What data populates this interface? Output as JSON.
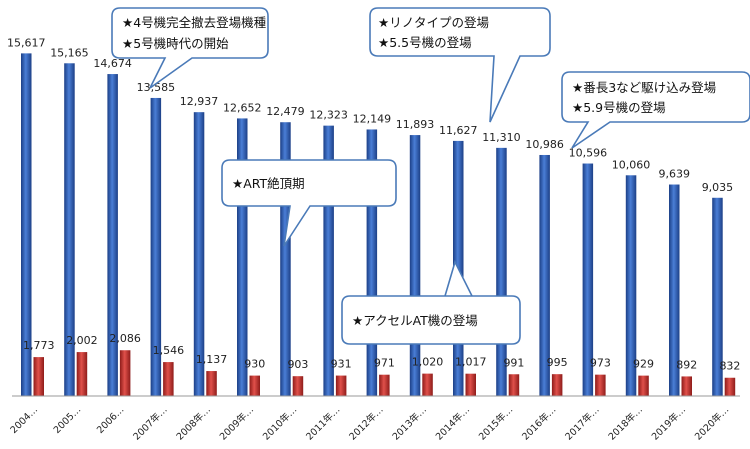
{
  "chart_data": {
    "type": "bar",
    "categories": [
      "2004…",
      "2005…",
      "2006…",
      "2007年…",
      "2008年…",
      "2009年…",
      "2010年…",
      "2011年…",
      "2012年…",
      "2013年…",
      "2014年…",
      "2015年…",
      "2016年…",
      "2017年…",
      "2018年…",
      "2019年…",
      "2020年…"
    ],
    "series": [
      {
        "values": [
          15617,
          15165,
          14674,
          13585,
          12937,
          12652,
          12479,
          12323,
          12149,
          11893,
          11627,
          11310,
          10986,
          10596,
          10060,
          9639,
          9035
        ],
        "color": "#2e5fb5"
      },
      {
        "values": [
          1773,
          2002,
          2086,
          1546,
          1137,
          930,
          903,
          931,
          971,
          1020,
          1017,
          991,
          995,
          973,
          929,
          892,
          832
        ],
        "color": "#c9302c"
      }
    ],
    "value_labels": {
      "blue": [
        "15,617",
        "15,165",
        "14,674",
        "13,585",
        "12,937",
        "12,652",
        "12,479",
        "12,323",
        "12,149",
        "11,893",
        "11,627",
        "11,310",
        "10,986",
        "10,596",
        "10,060",
        "9,639",
        "9,035"
      ],
      "red": [
        "1,773",
        "2,002",
        "2,086",
        "1,546",
        "1,137",
        "930",
        "903",
        "931",
        "971",
        "1,020",
        "1,017",
        "991",
        "995",
        "973",
        "929",
        "892",
        "832"
      ]
    },
    "ylim": [
      0,
      16500
    ],
    "grid": false,
    "legend": "none",
    "annotations": [
      {
        "lines": [
          "★4号機完全撤去登場機種",
          "★5号機時代の開始"
        ]
      },
      {
        "lines": [
          "★リノタイプの登場",
          "★5.5号機の登場"
        ]
      },
      {
        "lines": [
          "★番長3など駆け込み登場",
          "★5.9号機の登場"
        ]
      },
      {
        "lines": [
          "★ART絶頂期"
        ]
      },
      {
        "lines": [
          "★アクセルAT機の登場"
        ]
      }
    ]
  }
}
